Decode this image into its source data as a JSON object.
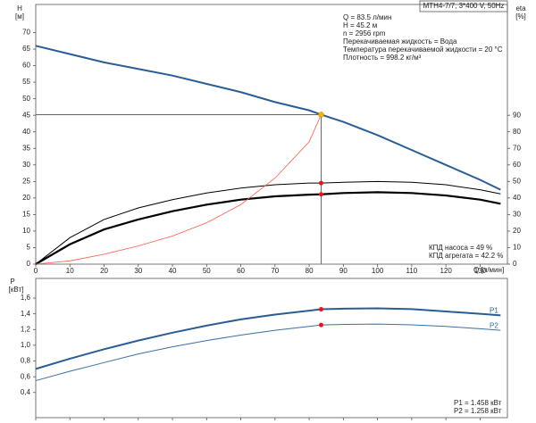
{
  "chart_data": [
    {
      "type": "line",
      "title": "MTH4-7/7, 3*400 V, 50Hz",
      "y_label": "H",
      "y_unit": "[м]",
      "y2_label": "eta",
      "y2_unit": "[%]",
      "x_label": "Q [л/мин]",
      "info": [
        "Q = 83.5 л/мин",
        "H = 45.2 м",
        "n = 2956 rpm",
        "Перекачиваемая жидкость = Вода",
        "Температура перекачиваемой жидкости = 20 °C",
        "Плотность = 998.2 кг/м³"
      ],
      "notes": [
        "КПД насоса = 49 %",
        "КПД агрегата = 42.2 %"
      ],
      "x": [
        0,
        10,
        20,
        30,
        40,
        50,
        60,
        70,
        80,
        83.5,
        90,
        100,
        110,
        120,
        130,
        136
      ],
      "xlim": [
        0,
        138
      ],
      "xticks": [
        0,
        10,
        20,
        30,
        40,
        50,
        60,
        70,
        80,
        90,
        100,
        110,
        120,
        130
      ],
      "ylim": [
        0,
        78.5
      ],
      "yticks": [
        0,
        5,
        10,
        15,
        20,
        25,
        30,
        35,
        40,
        45,
        50,
        55,
        60,
        65,
        70
      ],
      "y2lim": [
        0,
        157
      ],
      "y2ticks": [
        0,
        10,
        20,
        30,
        40,
        50,
        60,
        70,
        80,
        90
      ],
      "operating_index": 9,
      "series": [
        {
          "color": "#2a5d96",
          "width": 2,
          "values": [
            66,
            63.5,
            61,
            59,
            57,
            54.5,
            52,
            49,
            46.5,
            45.2,
            43,
            39,
            34.5,
            30,
            25.5,
            22.5
          ]
        },
        {
          "color": "#000000",
          "width": 1,
          "axis": "y2",
          "values": [
            0,
            16,
            27,
            34,
            39,
            43,
            46,
            48,
            49,
            49,
            49.5,
            50,
            49.5,
            48,
            45,
            42.5
          ]
        },
        {
          "color": "#000000",
          "width": 2.2,
          "axis": "y2",
          "values": [
            0,
            12,
            21,
            27,
            32,
            36,
            39,
            41,
            42,
            42.2,
            43,
            43.5,
            43,
            41.5,
            39,
            36.5
          ]
        },
        {
          "color": "#ff5a4a",
          "width": 0.8,
          "values": [
            0,
            1,
            3,
            5.5,
            8.5,
            12.5,
            18,
            26,
            37,
            45.2,
            null,
            null,
            null,
            null,
            null,
            null
          ]
        }
      ]
    },
    {
      "type": "line",
      "y_label": "P",
      "y_unit": "[кВт]",
      "notes": [
        "P1 = 1.458 кВт",
        "P2 = 1.258 кВт"
      ],
      "x": [
        0,
        10,
        20,
        30,
        40,
        50,
        60,
        70,
        80,
        83.5,
        90,
        100,
        110,
        120,
        130,
        136
      ],
      "xlim": [
        0,
        138
      ],
      "xticks": [
        0,
        10,
        20,
        30,
        40,
        50,
        60,
        70,
        80,
        90,
        100,
        110,
        120,
        130
      ],
      "ylim": [
        0.08,
        1.85
      ],
      "yticks": [
        {
          "value": 0.4,
          "label": "0,4"
        },
        {
          "value": 0.6,
          "label": "0,6"
        },
        {
          "value": 0.8,
          "label": "0,8"
        },
        {
          "value": 1.0,
          "label": "1,0"
        },
        {
          "value": 1.2,
          "label": "1,2"
        },
        {
          "value": 1.4,
          "label": "1,4"
        },
        {
          "value": 1.6,
          "label": "1,6"
        }
      ],
      "operating_index": 9,
      "series": [
        {
          "name": "P1",
          "color": "#2a5d96",
          "width": 2,
          "values": [
            0.7,
            0.83,
            0.95,
            1.06,
            1.16,
            1.25,
            1.33,
            1.39,
            1.44,
            1.458,
            1.465,
            1.47,
            1.46,
            1.43,
            1.4,
            1.38
          ]
        },
        {
          "name": "P2",
          "color": "#3a6fa8",
          "width": 1,
          "values": [
            0.55,
            0.67,
            0.78,
            0.89,
            0.98,
            1.06,
            1.13,
            1.19,
            1.24,
            1.258,
            1.265,
            1.27,
            1.26,
            1.24,
            1.21,
            1.19
          ]
        }
      ]
    }
  ]
}
